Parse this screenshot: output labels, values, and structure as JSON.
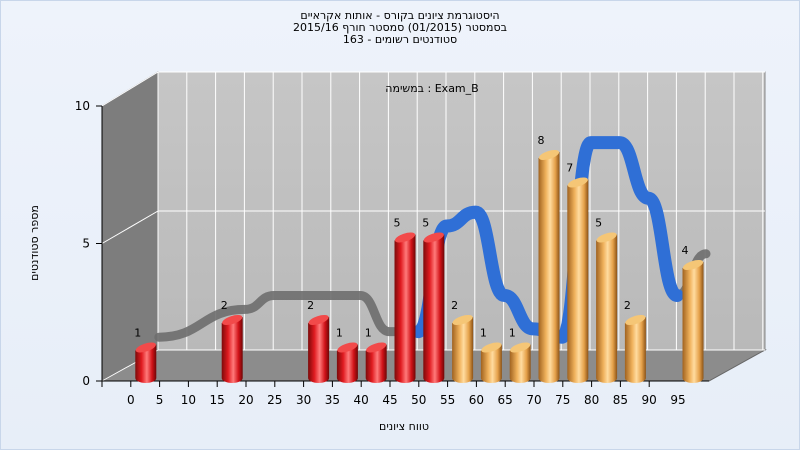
{
  "title": {
    "line1": "היסטוגרמת ציונים בקורס - אותות אקראיים",
    "line2": "בסמסטר  (01/2015)  סמסטר חורף 2015/16",
    "line3": "סטודנטים רשומים - 163"
  },
  "chart_data": {
    "type": "bar",
    "title": "היסטוגרמת ציונים בקורס - אותות אקראיים",
    "annotation": "במשימה : Exam_B",
    "xlabel": "טווח ציונים",
    "ylabel": "מספר סטודנטים",
    "ylim": [
      0,
      10
    ],
    "y_ticks": [
      0,
      5,
      10
    ],
    "x_tick_labels": [
      "0",
      "5",
      "10",
      "15",
      "20",
      "25",
      "30",
      "35",
      "40",
      "45",
      "50",
      "55",
      "60",
      "65",
      "70",
      "75",
      "80",
      "85",
      "90",
      "95"
    ],
    "bars": [
      {
        "x": 0,
        "value": 1,
        "group": "fail"
      },
      {
        "x": 15,
        "value": 2,
        "group": "fail"
      },
      {
        "x": 30,
        "value": 2,
        "group": "fail"
      },
      {
        "x": 35,
        "value": 1,
        "group": "fail"
      },
      {
        "x": 40,
        "value": 1,
        "group": "fail"
      },
      {
        "x": 45,
        "value": 5,
        "group": "fail"
      },
      {
        "x": 50,
        "value": 5,
        "group": "fail"
      },
      {
        "x": 55,
        "value": 2,
        "group": "pass"
      },
      {
        "x": 60,
        "value": 1,
        "group": "pass"
      },
      {
        "x": 65,
        "value": 1,
        "group": "pass"
      },
      {
        "x": 70,
        "value": 8,
        "group": "pass"
      },
      {
        "x": 75,
        "value": 7,
        "group": "pass"
      },
      {
        "x": 80,
        "value": 5,
        "group": "pass"
      },
      {
        "x": 85,
        "value": 2,
        "group": "pass"
      },
      {
        "x": 95,
        "value": 4,
        "group": "pass"
      }
    ],
    "trend_line": {
      "x": [
        0,
        15,
        20,
        25,
        30,
        35,
        40,
        45,
        50,
        55,
        60,
        65,
        70,
        75,
        80,
        85,
        90,
        95
      ],
      "values": [
        1,
        2,
        2.5,
        2.5,
        2.5,
        2.5,
        1.2,
        1.2,
        5,
        5.5,
        2.5,
        1.3,
        1,
        8,
        8,
        6,
        2.5,
        4
      ]
    },
    "colors": {
      "fail_bar": "#e0141b",
      "pass_bar": "#e7a24a",
      "trend_front": "#2f6fd6",
      "trend_back": "#6e6e6e",
      "wall": "#c0c0c0",
      "side_wall": "#7d7d7d",
      "floor": "#8c8c8c"
    },
    "grid": true
  }
}
